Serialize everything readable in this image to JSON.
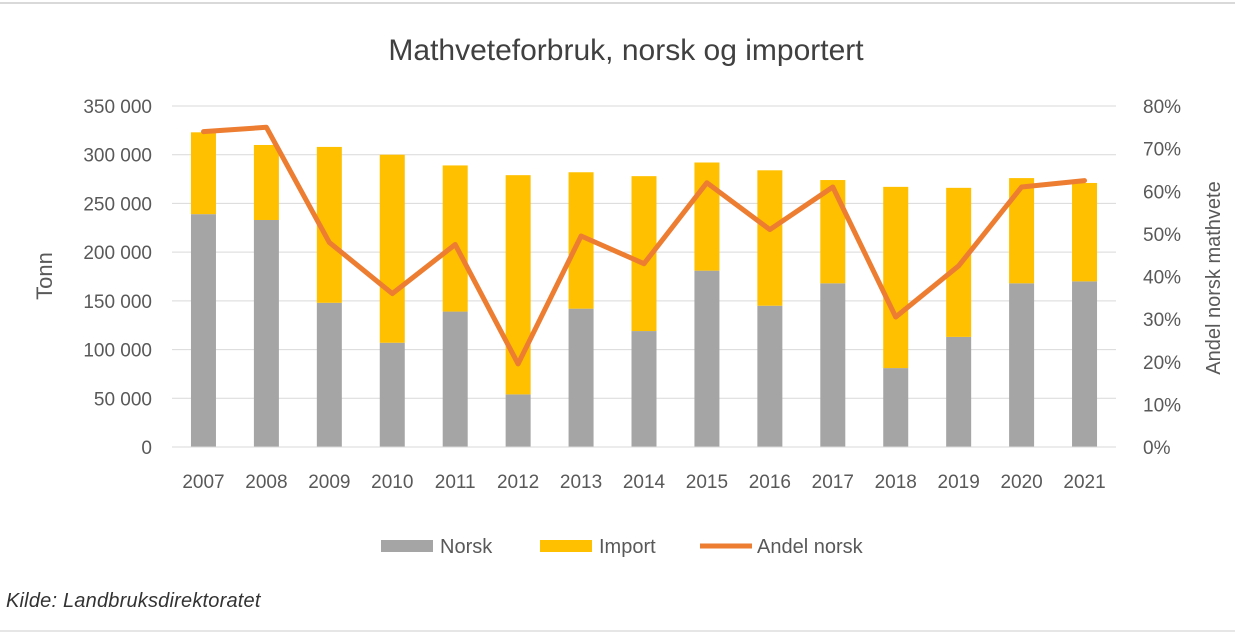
{
  "chart_data": {
    "type": "bar",
    "title": "Mathveteforbruk, norsk og importert",
    "ylabel": "Tonn",
    "y2label": "Andel norsk mathvete",
    "ylim": [
      0,
      350000
    ],
    "y2lim": [
      0,
      0.8
    ],
    "yticks": [
      "0",
      "50 000",
      "100 000",
      "150 000",
      "200 000",
      "250 000",
      "300 000",
      "350 000"
    ],
    "y2ticks": [
      "0%",
      "10%",
      "20%",
      "30%",
      "40%",
      "50%",
      "60%",
      "70%",
      "80%"
    ],
    "categories": [
      "2007",
      "2008",
      "2009",
      "2010",
      "2011",
      "2012",
      "2013",
      "2014",
      "2015",
      "2016",
      "2017",
      "2018",
      "2019",
      "2020",
      "2021"
    ],
    "series": [
      {
        "name": "Norsk",
        "kind": "stacked-bar",
        "axis": "left",
        "color": "#a5a5a5",
        "values": [
          239000,
          233000,
          148000,
          107000,
          139000,
          54000,
          142000,
          119000,
          181000,
          145000,
          168000,
          81000,
          113000,
          168000,
          170000
        ]
      },
      {
        "name": "Import",
        "kind": "stacked-bar",
        "axis": "left",
        "color": "#ffc000",
        "values": [
          84000,
          77000,
          160000,
          193000,
          150000,
          225000,
          140000,
          159000,
          111000,
          139000,
          106000,
          186000,
          153000,
          108000,
          101000
        ]
      },
      {
        "name": "Andel norsk",
        "kind": "line",
        "axis": "right",
        "color": "#ed7d31",
        "values": [
          0.74,
          0.75,
          0.48,
          0.36,
          0.475,
          0.195,
          0.495,
          0.43,
          0.62,
          0.51,
          0.61,
          0.305,
          0.425,
          0.61,
          0.625
        ]
      }
    ],
    "grid": true,
    "legend": "bottom"
  },
  "source": "Kilde: Landbruksdirektoratet"
}
